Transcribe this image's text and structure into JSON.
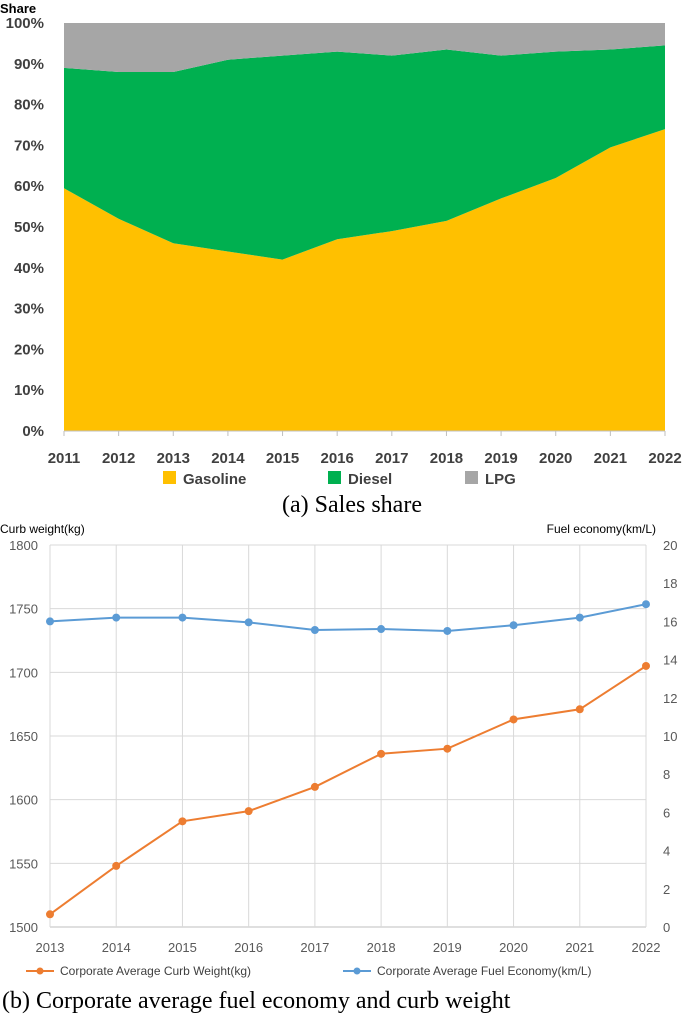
{
  "chart_data": [
    {
      "type": "area",
      "stacked": true,
      "ylabel": "Share",
      "ylim": [
        0,
        100
      ],
      "yticks": [
        "0%",
        "10%",
        "20%",
        "30%",
        "40%",
        "50%",
        "60%",
        "70%",
        "80%",
        "90%",
        "100%"
      ],
      "categories": [
        "2011",
        "2012",
        "2013",
        "2014",
        "2015",
        "2016",
        "2017",
        "2018",
        "2019",
        "2020",
        "2021",
        "2022"
      ],
      "series": [
        {
          "name": "Gasoline",
          "color": "#FFC000",
          "values": [
            59.5,
            52,
            46,
            44,
            42,
            47,
            49,
            51.5,
            57,
            62,
            69.5,
            74
          ]
        },
        {
          "name": "Diesel",
          "color": "#00B050",
          "values": [
            29.5,
            36,
            42,
            47,
            50,
            46,
            43,
            42,
            35,
            31,
            24,
            20.5
          ]
        },
        {
          "name": "LPG",
          "color": "#A6A6A6",
          "values": [
            11,
            12,
            12,
            9,
            8,
            7,
            8,
            6.5,
            8,
            7,
            6.5,
            5.5
          ]
        }
      ],
      "legend": "bottom",
      "caption": "(a)   Sales share"
    },
    {
      "type": "line",
      "dual_axis": true,
      "ylabel_left": "Curb weight(kg)",
      "ylabel_right": "Fuel economy(km/L)",
      "ylim_left": [
        1500,
        1800
      ],
      "ylim_right": [
        0,
        20
      ],
      "yticks_left": [
        "1500",
        "1550",
        "1600",
        "1650",
        "1700",
        "1750",
        "1800"
      ],
      "yticks_right": [
        "0",
        "2",
        "4",
        "6",
        "8",
        "10",
        "12",
        "14",
        "16",
        "18",
        "20"
      ],
      "categories": [
        "2013",
        "2014",
        "2015",
        "2016",
        "2017",
        "2018",
        "2019",
        "2020",
        "2021",
        "2022"
      ],
      "series": [
        {
          "name": "Corporate Average Curb Weight(kg)",
          "color": "#ED7D31",
          "axis": "left",
          "values": [
            1510,
            1548,
            1583,
            1591,
            1610,
            1636,
            1640,
            1663,
            1671,
            1705
          ]
        },
        {
          "name": "Corporate Average Fuel Economy(km/L)",
          "color": "#5B9BD5",
          "axis": "right",
          "values": [
            16.0,
            16.2,
            16.2,
            15.95,
            15.55,
            15.6,
            15.5,
            15.8,
            16.2,
            16.9
          ]
        }
      ],
      "legend": "bottom",
      "caption": "(b)  Corporate average fuel economy and curb weight"
    }
  ]
}
